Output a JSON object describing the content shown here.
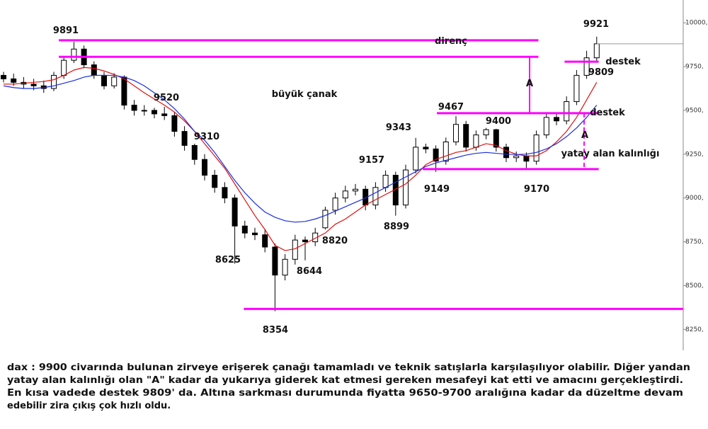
{
  "chart_data": {
    "type": "candlestick",
    "ylim": [
      8130,
      10130
    ],
    "yticks": [
      {
        "value": 8250,
        "label": "8250,"
      },
      {
        "value": 8500,
        "label": "8500,"
      },
      {
        "value": 8750,
        "label": "8750,"
      },
      {
        "value": 9000,
        "label": "9000,"
      },
      {
        "value": 9250,
        "label": "9250,"
      },
      {
        "value": 9500,
        "label": "9500,"
      },
      {
        "value": 9750,
        "label": "9750,"
      },
      {
        "value": 10000,
        "label": "10000,"
      }
    ],
    "open": [
      9700,
      9680,
      9660,
      9650,
      9640,
      9625,
      9700,
      9786,
      9850,
      9760,
      9700,
      9640,
      9690,
      9530,
      9500,
      9500,
      9480,
      9470,
      9380,
      9300,
      9220,
      9130,
      9060,
      9000,
      8840,
      8800,
      8790,
      8720,
      8560,
      8650,
      8760,
      8750,
      8830,
      8930,
      9000,
      9040,
      9050,
      8960,
      9060,
      9130,
      8960,
      9160,
      9290,
      9280,
      9210,
      9320,
      9420,
      9290,
      9360,
      9390,
      9290,
      9230,
      9240,
      9210,
      9360,
      9460,
      9440,
      9550,
      9700,
      9800
    ],
    "high": [
      9720,
      9710,
      9690,
      9680,
      9670,
      9720,
      9810,
      9891,
      9870,
      9780,
      9720,
      9712,
      9700,
      9560,
      9530,
      9515,
      9520,
      9490,
      9410,
      9310,
      9250,
      9160,
      9090,
      9020,
      8870,
      8830,
      8820,
      8740,
      8680,
      8790,
      8780,
      8830,
      8950,
      9030,
      9070,
      9080,
      9070,
      9090,
      9157,
      9150,
      9190,
      9343,
      9310,
      9300,
      9345,
      9467,
      9440,
      9385,
      9400,
      9395,
      9310,
      9265,
      9260,
      9385,
      9490,
      9480,
      9580,
      9730,
      9840,
      9921
    ],
    "low": [
      9660,
      9640,
      9625,
      9615,
      9600,
      9610,
      9680,
      9770,
      9740,
      9680,
      9620,
      9625,
      9505,
      9470,
      9470,
      9455,
      9445,
      9350,
      9270,
      9190,
      9100,
      9030,
      8970,
      8625,
      8770,
      8760,
      8690,
      8354,
      8530,
      8620,
      8644,
      8725,
      8820,
      8905,
      8975,
      9015,
      8930,
      8935,
      9035,
      8899,
      8940,
      9140,
      9255,
      9149,
      9190,
      9300,
      9265,
      9270,
      9335,
      9265,
      9205,
      9205,
      9170,
      9190,
      9340,
      9415,
      9420,
      9530,
      9680,
      9780
    ],
    "close": [
      9680,
      9660,
      9650,
      9640,
      9625,
      9700,
      9786,
      9850,
      9760,
      9700,
      9640,
      9690,
      9530,
      9500,
      9500,
      9480,
      9470,
      9380,
      9300,
      9220,
      9130,
      9060,
      9000,
      8840,
      8800,
      8790,
      8720,
      8560,
      8650,
      8760,
      8750,
      8800,
      8930,
      9000,
      9040,
      9050,
      8960,
      9060,
      9130,
      8960,
      9160,
      9290,
      9280,
      9210,
      9320,
      9420,
      9290,
      9360,
      9390,
      9290,
      9230,
      9240,
      9210,
      9360,
      9460,
      9440,
      9550,
      9700,
      9800,
      9880
    ],
    "moving_averages": [
      {
        "color": "#e01010",
        "values": [
          9650,
          9650,
          9655,
          9660,
          9665,
          9675,
          9700,
          9730,
          9745,
          9740,
          9725,
          9705,
          9680,
          9640,
          9600,
          9565,
          9530,
          9490,
          9440,
          9380,
          9310,
          9240,
          9170,
          9080,
          8990,
          8900,
          8820,
          8730,
          8700,
          8710,
          8740,
          8770,
          8800,
          8850,
          8880,
          8920,
          8960,
          8990,
          9020,
          9050,
          9080,
          9130,
          9190,
          9220,
          9240,
          9260,
          9270,
          9290,
          9310,
          9300,
          9270,
          9250,
          9240,
          9240,
          9270,
          9320,
          9380,
          9460,
          9560,
          9660
        ]
      },
      {
        "color": "#1a2ee0",
        "values": [
          9640,
          9630,
          9625,
          9625,
          9630,
          9640,
          9655,
          9670,
          9690,
          9700,
          9700,
          9700,
          9690,
          9670,
          9640,
          9600,
          9560,
          9510,
          9450,
          9380,
          9330,
          9260,
          9180,
          9100,
          9030,
          8970,
          8920,
          8890,
          8870,
          8862,
          8866,
          8880,
          8900,
          8925,
          8950,
          8975,
          9000,
          9030,
          9060,
          9090,
          9120,
          9150,
          9180,
          9200,
          9215,
          9230,
          9245,
          9255,
          9260,
          9255,
          9250,
          9248,
          9250,
          9260,
          9280,
          9310,
          9350,
          9400,
          9460,
          9530
        ]
      }
    ],
    "levels": [
      {
        "value": 9900,
        "start": 5.5,
        "end": 53.2,
        "color": "#ff00ff"
      },
      {
        "value": 9806,
        "start": 5.5,
        "end": 53.2,
        "color": "#ff00ff"
      },
      {
        "value": 9484,
        "start": 43.1,
        "end": 59.2,
        "color": "#ff00ff"
      },
      {
        "value": 9165,
        "start": 41.7,
        "end": 59.2,
        "color": "#ff00ff"
      },
      {
        "value": 8367,
        "start": 23.9,
        "end": 67.6,
        "color": "#ff00ff"
      },
      {
        "value": 9778,
        "start": 55.8,
        "end": 59.2,
        "color": "#ff00ff"
      }
    ],
    "annotations": [
      {
        "text": "9891"
      },
      {
        "text": "9520"
      },
      {
        "text": "9310"
      },
      {
        "text": "8625"
      },
      {
        "text": "8354"
      },
      {
        "text": "8644"
      },
      {
        "text": "8820"
      },
      {
        "text": "9157"
      },
      {
        "text": "8899"
      },
      {
        "text": "9343"
      },
      {
        "text": "9149"
      },
      {
        "text": "9467"
      },
      {
        "text": "9400"
      },
      {
        "text": "9170"
      },
      {
        "text": "9921"
      },
      {
        "text": "9809"
      },
      {
        "text": "direnç"
      },
      {
        "text": "destek"
      },
      {
        "text": "destek"
      },
      {
        "text": "A"
      },
      {
        "text": "A"
      },
      {
        "text": "büyük çanak"
      },
      {
        "text": "yatay alan kalınlığı"
      }
    ]
  },
  "caption": {
    "lines": [
      "dax : 9900 civarında bulunan zirveye erişerek çanağı tamamladı ve teknik satışlarla karşılaşılıyor olabilir. Diğer yandan",
      "yatay alan kalınlığı olan \"A\" kadar da yukarıya giderek kat etmesi gereken mesafeyi kat etti ve amacını gerçekleştirdi.",
      "En kısa vadede destek 9809' da. Altına sarkması durumunda fiyatta 9650-9700 aralığına kadar da düzeltme devam",
      "edebilir zira çıkış çok hızlı oldu."
    ]
  }
}
